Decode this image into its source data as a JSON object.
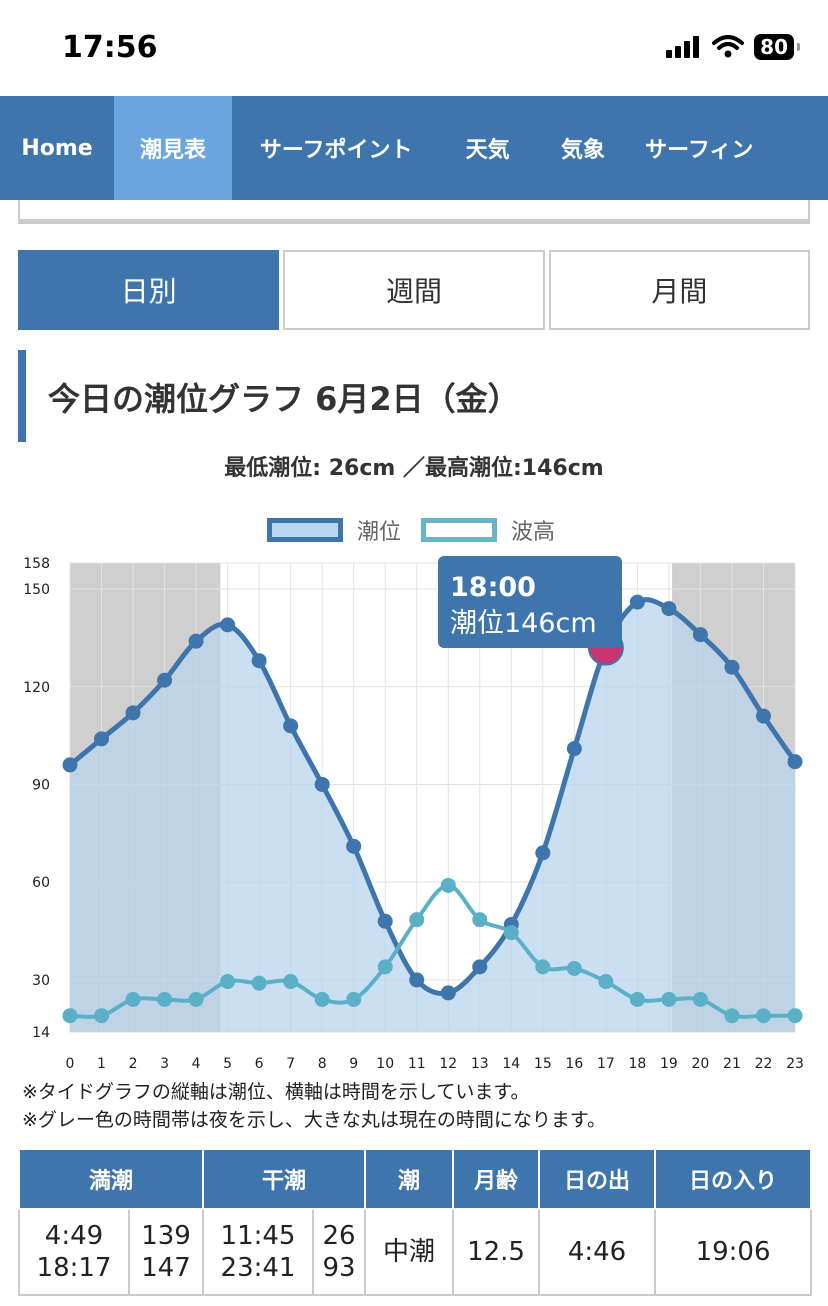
{
  "status_bar": {
    "time": "17:56",
    "battery": "80"
  },
  "nav": {
    "items": [
      "Home",
      "潮見表",
      "サーフポイント",
      "天気",
      "気象",
      "サーフィン"
    ],
    "active_index": 1
  },
  "tabs": {
    "items": [
      "日別",
      "週間",
      "月間"
    ],
    "active_index": 0
  },
  "heading": "今日の潮位グラフ 6月2日（金）",
  "minmax": "最低潮位: 26cm ／最高潮位:146cm",
  "legend": {
    "tide": "潮位",
    "wave": "波高"
  },
  "tooltip": {
    "time": "18:00",
    "value": "潮位146cm"
  },
  "chart_data": {
    "type": "line",
    "x": [
      0,
      1,
      2,
      3,
      4,
      5,
      6,
      7,
      8,
      9,
      10,
      11,
      12,
      13,
      14,
      15,
      16,
      17,
      18,
      19,
      20,
      21,
      22,
      23
    ],
    "ylim": [
      14,
      158
    ],
    "y_ticks": [
      14,
      30,
      60,
      90,
      120,
      150,
      158
    ],
    "series": [
      {
        "name": "潮位",
        "color": "#3f75ad",
        "fill": "#b8d6ee",
        "values": [
          96,
          104,
          112,
          122,
          134,
          139,
          128,
          108,
          90,
          71,
          48,
          30,
          26,
          34,
          47,
          69,
          101,
          132,
          146,
          144,
          136,
          126,
          111,
          97
        ]
      },
      {
        "name": "波高",
        "color": "#5bb0c8",
        "values": [
          19,
          19,
          24,
          24,
          24,
          29.5,
          29,
          29.5,
          24,
          24,
          34,
          48.5,
          59,
          48.5,
          44.5,
          34,
          33.5,
          29.5,
          24,
          24,
          24,
          19,
          19,
          19
        ]
      }
    ],
    "night_ranges": [
      [
        0,
        4.77
      ],
      [
        19.1,
        23
      ]
    ],
    "current_hour": 17,
    "grid": true
  },
  "notes": [
    "※タイドグラフの縦軸は潮位、横軸は時間を示しています。",
    "※グレー色の時間帯は夜を示し、大きな丸は現在の時間になります。"
  ],
  "table": {
    "headers": [
      "満潮",
      "干潮",
      "潮",
      "月齢",
      "日の出",
      "日の入り"
    ],
    "high_times": [
      "4:49",
      "18:17"
    ],
    "high_levels": [
      "139",
      "147"
    ],
    "low_times": [
      "11:45",
      "23:41"
    ],
    "low_levels": [
      "26",
      "93"
    ],
    "tide_type": "中潮",
    "moon_age": "12.5",
    "sunrise": "4:46",
    "sunset": "19:06"
  }
}
